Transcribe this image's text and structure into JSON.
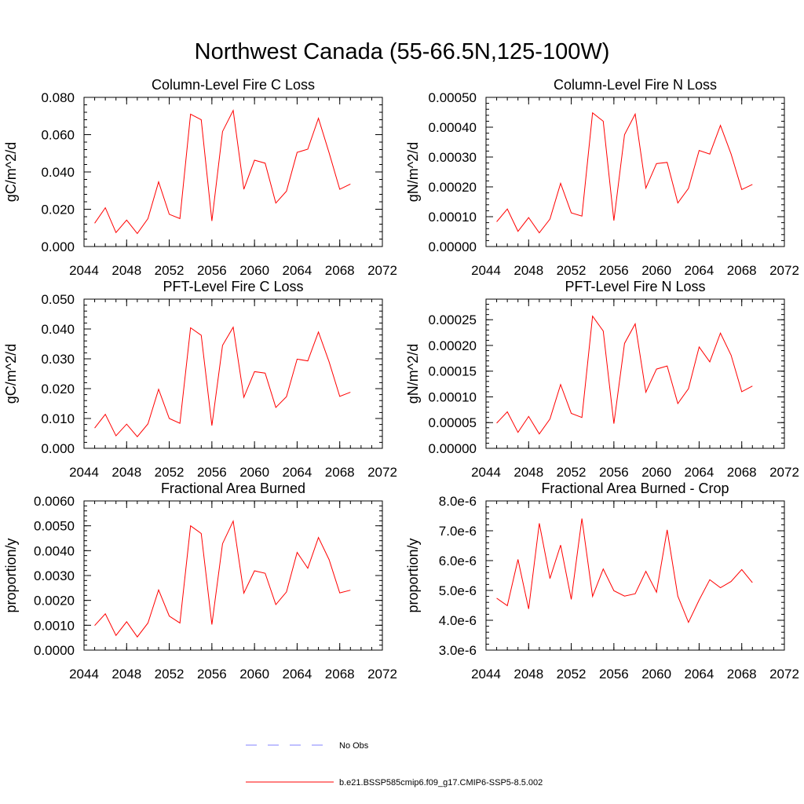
{
  "figure": {
    "title": "Northwest Canada (55-66.5N,125-100W)",
    "legend": [
      {
        "label": "No Obs",
        "color": "#8080ff",
        "style": "dashed"
      },
      {
        "label": "b.e21.BSSP585cmip6.f09_g17.CMIP6-SSP5-8.5.002",
        "color": "#ff0000",
        "style": "solid"
      }
    ]
  },
  "chart_data": [
    {
      "type": "line",
      "title": "Column-Level Fire C Loss",
      "ylabel": "gC/m^2/d",
      "xlim": [
        2044,
        2072
      ],
      "xticks": [
        2044,
        2048,
        2052,
        2056,
        2060,
        2064,
        2068,
        2072
      ],
      "ylim": [
        0,
        0.08
      ],
      "yticks": [
        "0.000",
        "0.020",
        "0.040",
        "0.060",
        "0.080"
      ],
      "yminor": 0.004,
      "series": [
        {
          "name": "b.e21.BSSP585cmip6.f09_g17.CMIP6-SSP5-8.5.002",
          "color": "#ff0000",
          "x": [
            2045,
            2046,
            2047,
            2048,
            2049,
            2050,
            2051,
            2052,
            2053,
            2054,
            2055,
            2056,
            2057,
            2058,
            2059,
            2060,
            2061,
            2062,
            2063,
            2064,
            2065,
            2066,
            2067,
            2068,
            2069
          ],
          "y": [
            0.0125,
            0.0208,
            0.0075,
            0.0142,
            0.007,
            0.015,
            0.0347,
            0.0173,
            0.015,
            0.071,
            0.068,
            0.0137,
            0.0617,
            0.073,
            0.0307,
            0.0463,
            0.0447,
            0.0233,
            0.0297,
            0.0505,
            0.0522,
            0.0688,
            0.0503,
            0.0307,
            0.0335
          ]
        }
      ]
    },
    {
      "type": "line",
      "title": "Column-Level Fire N Loss",
      "ylabel": "gN/m^2/d",
      "xlim": [
        2044,
        2072
      ],
      "xticks": [
        2044,
        2048,
        2052,
        2056,
        2060,
        2064,
        2068,
        2072
      ],
      "ylim": [
        0,
        0.0005
      ],
      "yticks": [
        "0.00000",
        "0.00010",
        "0.00020",
        "0.00030",
        "0.00040",
        "0.00050"
      ],
      "yminor": 2e-05,
      "series": [
        {
          "name": "b.e21.BSSP585cmip6.f09_g17.CMIP6-SSP5-8.5.002",
          "color": "#ff0000",
          "x": [
            2045,
            2046,
            2047,
            2048,
            2049,
            2050,
            2051,
            2052,
            2053,
            2054,
            2055,
            2056,
            2057,
            2058,
            2059,
            2060,
            2061,
            2062,
            2063,
            2064,
            2065,
            2066,
            2067,
            2068,
            2069
          ],
          "y": [
            8.3e-05,
            0.000126,
            5.1e-05,
            9.7e-05,
            4.6e-05,
            9.2e-05,
            0.000212,
            0.000113,
            0.000102,
            0.000448,
            0.00042,
            8.7e-05,
            0.000375,
            0.000444,
            0.000196,
            0.000278,
            0.000282,
            0.000146,
            0.000195,
            0.000322,
            0.00031,
            0.000406,
            0.00031,
            0.000191,
            0.000208
          ]
        }
      ]
    },
    {
      "type": "line",
      "title": "PFT-Level Fire C Loss",
      "ylabel": "gC/m^2/d",
      "xlim": [
        2044,
        2072
      ],
      "xticks": [
        2044,
        2048,
        2052,
        2056,
        2060,
        2064,
        2068,
        2072
      ],
      "ylim": [
        0,
        0.05
      ],
      "yticks": [
        "0.000",
        "0.010",
        "0.020",
        "0.030",
        "0.040",
        "0.050"
      ],
      "yminor": 0.002,
      "series": [
        {
          "name": "b.e21.BSSP585cmip6.f09_g17.CMIP6-SSP5-8.5.002",
          "color": "#ff0000",
          "x": [
            2045,
            2046,
            2047,
            2048,
            2049,
            2050,
            2051,
            2052,
            2053,
            2054,
            2055,
            2056,
            2057,
            2058,
            2059,
            2060,
            2061,
            2062,
            2063,
            2064,
            2065,
            2066,
            2067,
            2068,
            2069
          ],
          "y": [
            0.0068,
            0.0114,
            0.0042,
            0.0081,
            0.0039,
            0.0082,
            0.0198,
            0.01,
            0.0084,
            0.0404,
            0.0379,
            0.0076,
            0.0345,
            0.0406,
            0.0171,
            0.0257,
            0.0252,
            0.0137,
            0.0173,
            0.0299,
            0.0293,
            0.039,
            0.029,
            0.0174,
            0.0188
          ]
        }
      ]
    },
    {
      "type": "line",
      "title": "PFT-Level Fire N Loss",
      "ylabel": "gN/m^2/d",
      "xlim": [
        2044,
        2072
      ],
      "xticks": [
        2044,
        2048,
        2052,
        2056,
        2060,
        2064,
        2068,
        2072
      ],
      "ylim": [
        0,
        0.00029
      ],
      "yticks": [
        "0.00000",
        "0.00005",
        "0.00010",
        "0.00015",
        "0.00020",
        "0.00025"
      ],
      "ytickvals": [
        0,
        5e-05,
        0.0001,
        0.00015,
        0.0002,
        0.00025
      ],
      "yminor": 1e-05,
      "series": [
        {
          "name": "b.e21.BSSP585cmip6.f09_g17.CMIP6-SSP5-8.5.002",
          "color": "#ff0000",
          "x": [
            2045,
            2046,
            2047,
            2048,
            2049,
            2050,
            2051,
            2052,
            2053,
            2054,
            2055,
            2056,
            2057,
            2058,
            2059,
            2060,
            2061,
            2062,
            2063,
            2064,
            2065,
            2066,
            2067,
            2068,
            2069
          ],
          "y": [
            4.9e-05,
            7.1e-05,
            3.1e-05,
            6.2e-05,
            2.8e-05,
            5.7e-05,
            0.000124,
            6.8e-05,
            6e-05,
            0.000257,
            0.000228,
            4.8e-05,
            0.000204,
            0.000242,
            0.000109,
            0.000154,
            0.00016,
            8.7e-05,
            0.000116,
            0.000197,
            0.000168,
            0.000224,
            0.000181,
            0.00011,
            0.000121
          ]
        }
      ]
    },
    {
      "type": "line",
      "title": "Fractional Area Burned",
      "ylabel": "proportion/y",
      "xlim": [
        2044,
        2072
      ],
      "xticks": [
        2044,
        2048,
        2052,
        2056,
        2060,
        2064,
        2068,
        2072
      ],
      "ylim": [
        0,
        0.006
      ],
      "yticks": [
        "0.0000",
        "0.0010",
        "0.0020",
        "0.0030",
        "0.0040",
        "0.0050",
        "0.0060"
      ],
      "yminor": 0.0002,
      "series": [
        {
          "name": "b.e21.BSSP585cmip6.f09_g17.CMIP6-SSP5-8.5.002",
          "color": "#ff0000",
          "x": [
            2045,
            2046,
            2047,
            2048,
            2049,
            2050,
            2051,
            2052,
            2053,
            2054,
            2055,
            2056,
            2057,
            2058,
            2059,
            2060,
            2061,
            2062,
            2063,
            2064,
            2065,
            2066,
            2067,
            2068,
            2069
          ],
          "y": [
            0.00099,
            0.00146,
            0.00059,
            0.00114,
            0.00053,
            0.00109,
            0.00242,
            0.00137,
            0.00109,
            0.005,
            0.00469,
            0.00103,
            0.00428,
            0.00519,
            0.00229,
            0.00319,
            0.00309,
            0.00183,
            0.00234,
            0.00393,
            0.00329,
            0.00453,
            0.00364,
            0.0023,
            0.00241
          ]
        }
      ]
    },
    {
      "type": "line",
      "title": "Fractional Area Burned - Crop",
      "ylabel": "proportion/y",
      "xlim": [
        2044,
        2072
      ],
      "xticks": [
        2044,
        2048,
        2052,
        2056,
        2060,
        2064,
        2068,
        2072
      ],
      "ylim": [
        3e-06,
        8e-06
      ],
      "yticks": [
        "3.0e-6",
        "4.0e-6",
        "5.0e-6",
        "6.0e-6",
        "7.0e-6",
        "8.0e-6"
      ],
      "yminor": 2e-07,
      "series": [
        {
          "name": "b.e21.BSSP585cmip6.f09_g17.CMIP6-SSP5-8.5.002",
          "color": "#ff0000",
          "x": [
            2045,
            2046,
            2047,
            2048,
            2049,
            2050,
            2051,
            2052,
            2053,
            2054,
            2055,
            2056,
            2057,
            2058,
            2059,
            2060,
            2061,
            2062,
            2063,
            2064,
            2065,
            2066,
            2067,
            2068,
            2069
          ],
          "y": [
            4.74e-06,
            4.49e-06,
            6.04e-06,
            4.38e-06,
            7.25e-06,
            5.4e-06,
            6.52e-06,
            4.7e-06,
            7.41e-06,
            4.8e-06,
            5.72e-06,
            4.99e-06,
            4.81e-06,
            4.89e-06,
            5.64e-06,
            4.94e-06,
            7.03e-06,
            4.81e-06,
            3.93e-06,
            4.68e-06,
            5.36e-06,
            5.09e-06,
            5.3e-06,
            5.7e-06,
            5.26e-06
          ]
        }
      ]
    }
  ]
}
